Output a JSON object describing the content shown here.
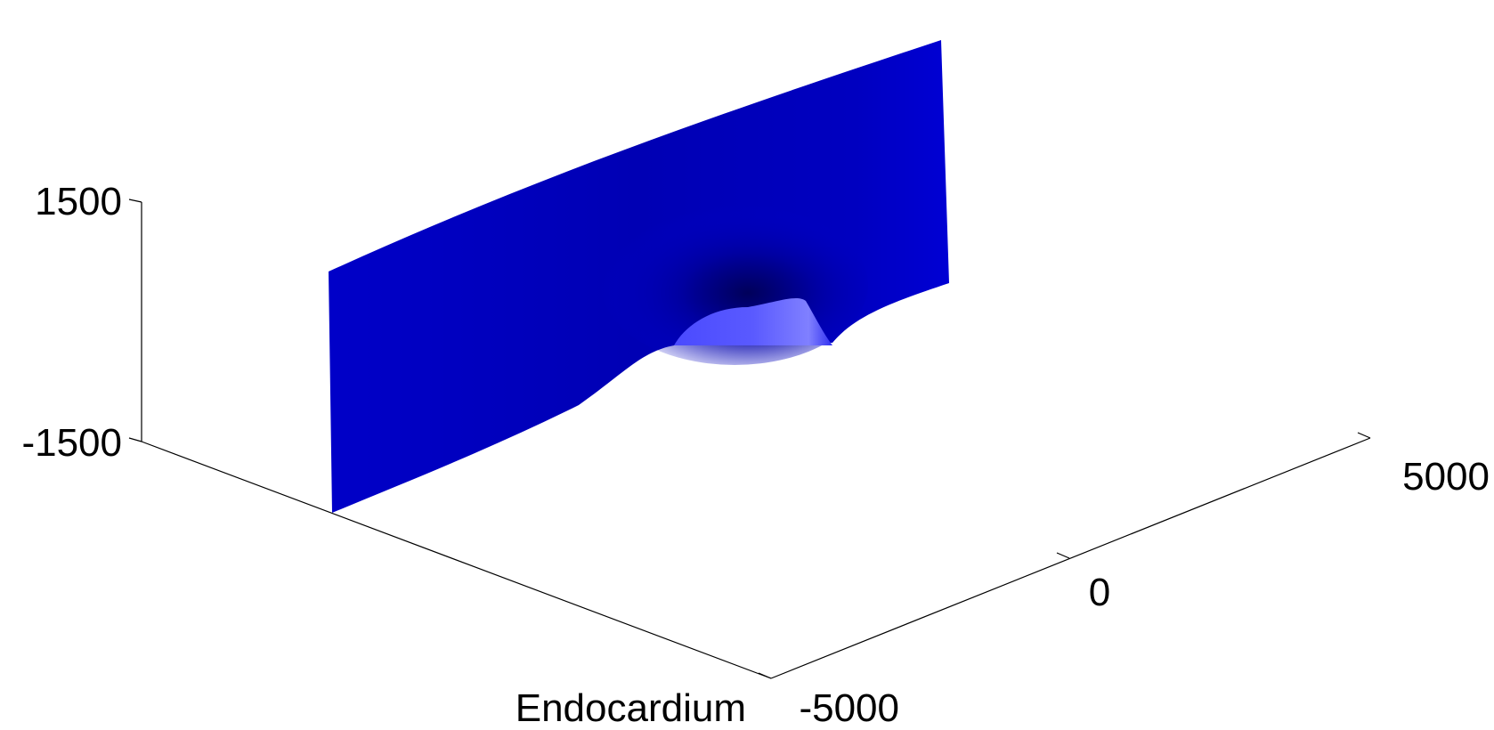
{
  "chart_data": {
    "type": "surface",
    "title": "",
    "colormap": "blue",
    "colors": {
      "surface_base": "#0000c8",
      "surface_dark": "#00005a",
      "surface_highlight": "#5a5aff",
      "axis": "#000000",
      "background": "#ffffff"
    },
    "axes": {
      "x": {
        "label": "",
        "ticks": [
          -5000,
          0,
          5000
        ],
        "tick_labels": [
          "-5000",
          "0",
          "5000"
        ],
        "range": [
          -5000,
          5000
        ]
      },
      "y": {
        "label": "Endocardium",
        "ticks": [],
        "tick_labels": []
      },
      "z": {
        "label": "",
        "ticks": [
          -1500,
          1500
        ],
        "tick_labels": [
          "-1500",
          "1500"
        ],
        "range": [
          -1500,
          1500
        ]
      }
    },
    "surface": {
      "description_values": "vertical sheet spanning z from about -1500 to 1500 with a dip near x = 0",
      "dip_center_x": 0,
      "dip_depth_z": 700
    },
    "grid": false,
    "legend": "none"
  }
}
